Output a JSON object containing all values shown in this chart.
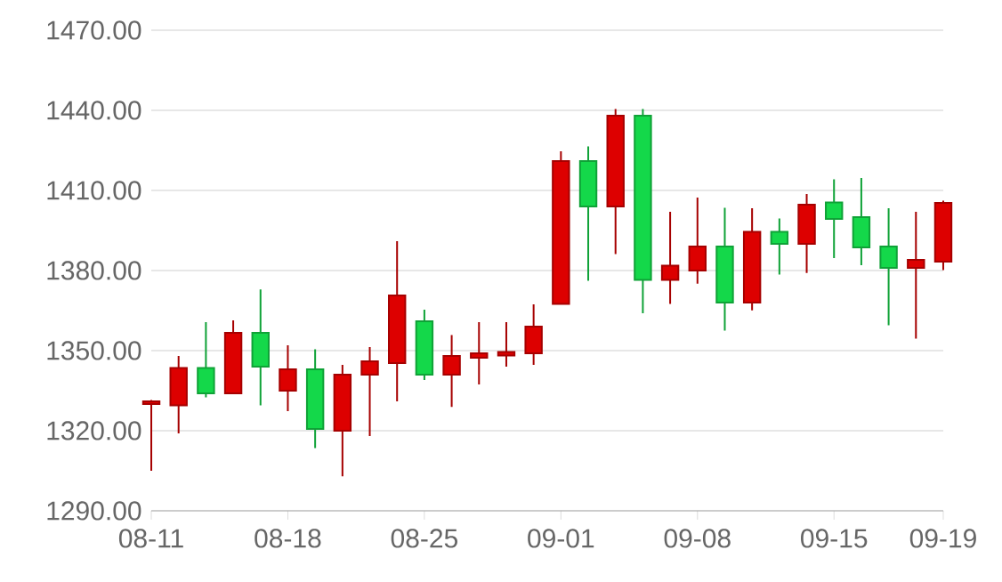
{
  "chart_data": {
    "type": "candlestick",
    "categories": [
      "08-11",
      null,
      null,
      null,
      null,
      "08-18",
      null,
      null,
      null,
      null,
      "08-25",
      null,
      null,
      null,
      null,
      "09-01",
      null,
      null,
      null,
      null,
      "09-08",
      null,
      null,
      null,
      null,
      "09-15",
      null,
      null,
      null,
      "09-19"
    ],
    "ohlc": [
      [
        1330,
        1331.5,
        1305,
        1331
      ],
      [
        1329.5,
        1348,
        1319,
        1343.5
      ],
      [
        1343.5,
        1360.7,
        1332.5,
        1334
      ],
      [
        1334,
        1361.3,
        1334,
        1356.7
      ],
      [
        1356.7,
        1372.9,
        1329.5,
        1344
      ],
      [
        1335,
        1352,
        1327.3,
        1343
      ],
      [
        1343,
        1350.5,
        1313.5,
        1320.7
      ],
      [
        1320,
        1344.7,
        1302.9,
        1341
      ],
      [
        1341,
        1351.3,
        1318,
        1346
      ],
      [
        1345.3,
        1391,
        1331,
        1370.7
      ],
      [
        1361,
        1365.3,
        1339,
        1341
      ],
      [
        1341,
        1355.8,
        1328.9,
        1348
      ],
      [
        1347.3,
        1360.7,
        1337.3,
        1349
      ],
      [
        1348.2,
        1360.7,
        1344,
        1349.5
      ],
      [
        1349,
        1367.3,
        1344.7,
        1359
      ],
      [
        1367.5,
        1424.7,
        1367.5,
        1421
      ],
      [
        1421,
        1426.5,
        1376.2,
        1404
      ],
      [
        1404,
        1440.5,
        1386.2,
        1438
      ],
      [
        1438,
        1440.5,
        1364,
        1376.5
      ],
      [
        1376.5,
        1402,
        1367.5,
        1381.8
      ],
      [
        1380,
        1407.3,
        1375.1,
        1389
      ],
      [
        1389,
        1403.5,
        1357.5,
        1368
      ],
      [
        1368,
        1403.3,
        1365.1,
        1394.5
      ],
      [
        1394.5,
        1399.5,
        1378.5,
        1390
      ],
      [
        1390,
        1408.7,
        1379.1,
        1404.7
      ],
      [
        1405.5,
        1414.2,
        1384.7,
        1399.3
      ],
      [
        1400,
        1414.7,
        1382,
        1388.7
      ],
      [
        1389,
        1403.3,
        1359.5,
        1381
      ],
      [
        1381,
        1402,
        1354.5,
        1384
      ],
      [
        1383.3,
        1406.2,
        1380.2,
        1405.3
      ]
    ],
    "colors": [
      "#dd0000",
      "#dd0000",
      "#14d84a",
      "#dd0000",
      "#14d84a",
      "#dd0000",
      "#14d84a",
      "#dd0000",
      "#dd0000",
      "#dd0000",
      "#14d84a",
      "#dd0000",
      "#dd0000",
      "#dd0000",
      "#dd0000",
      "#dd0000",
      "#14d84a",
      "#dd0000",
      "#14d84a",
      "#dd0000",
      "#dd0000",
      "#14d84a",
      "#dd0000",
      "#14d84a",
      "#dd0000",
      "#14d84a",
      "#14d84a",
      "#14d84a",
      "#dd0000",
      "#dd0000"
    ],
    "ylim": [
      1290,
      1470
    ],
    "yticks": [
      {
        "value": 1290,
        "label": "1290.00"
      },
      {
        "value": 1320,
        "label": "1320.00"
      },
      {
        "value": 1350,
        "label": "1350.00"
      },
      {
        "value": 1380,
        "label": "1380.00"
      },
      {
        "value": 1410,
        "label": "1410.00"
      },
      {
        "value": 1440,
        "label": "1440.00"
      },
      {
        "value": 1470,
        "label": "1470.00"
      }
    ],
    "grid": "y"
  }
}
